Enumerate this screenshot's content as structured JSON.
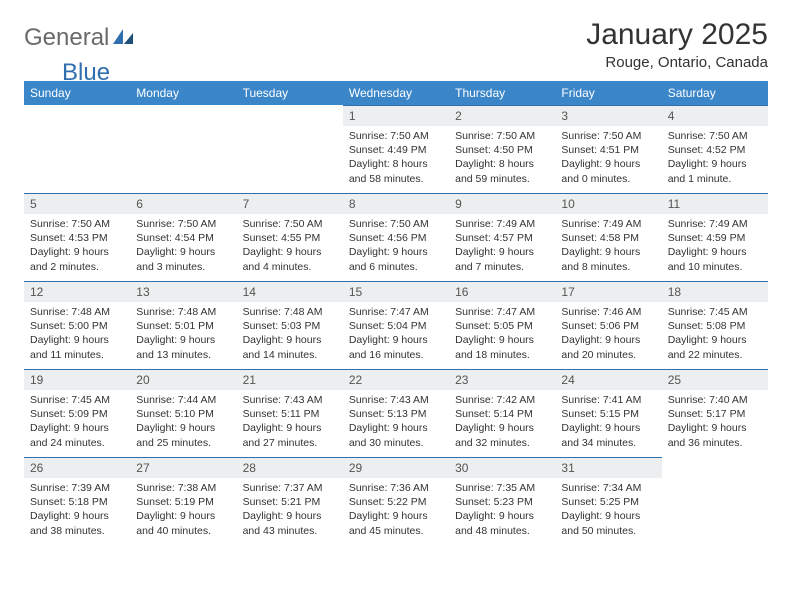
{
  "logo": {
    "word1": "General",
    "word2": "Blue"
  },
  "title": "January 2025",
  "location": "Rouge, Ontario, Canada",
  "headerColor": "#3a86c8",
  "dayHeaders": [
    "Sunday",
    "Monday",
    "Tuesday",
    "Wednesday",
    "Thursday",
    "Friday",
    "Saturday"
  ],
  "weeks": [
    [
      null,
      null,
      null,
      {
        "n": "1",
        "sr": "7:50 AM",
        "ss": "4:49 PM",
        "dl": "8 hours and 58 minutes."
      },
      {
        "n": "2",
        "sr": "7:50 AM",
        "ss": "4:50 PM",
        "dl": "8 hours and 59 minutes."
      },
      {
        "n": "3",
        "sr": "7:50 AM",
        "ss": "4:51 PM",
        "dl": "9 hours and 0 minutes."
      },
      {
        "n": "4",
        "sr": "7:50 AM",
        "ss": "4:52 PM",
        "dl": "9 hours and 1 minute."
      }
    ],
    [
      {
        "n": "5",
        "sr": "7:50 AM",
        "ss": "4:53 PM",
        "dl": "9 hours and 2 minutes."
      },
      {
        "n": "6",
        "sr": "7:50 AM",
        "ss": "4:54 PM",
        "dl": "9 hours and 3 minutes."
      },
      {
        "n": "7",
        "sr": "7:50 AM",
        "ss": "4:55 PM",
        "dl": "9 hours and 4 minutes."
      },
      {
        "n": "8",
        "sr": "7:50 AM",
        "ss": "4:56 PM",
        "dl": "9 hours and 6 minutes."
      },
      {
        "n": "9",
        "sr": "7:49 AM",
        "ss": "4:57 PM",
        "dl": "9 hours and 7 minutes."
      },
      {
        "n": "10",
        "sr": "7:49 AM",
        "ss": "4:58 PM",
        "dl": "9 hours and 8 minutes."
      },
      {
        "n": "11",
        "sr": "7:49 AM",
        "ss": "4:59 PM",
        "dl": "9 hours and 10 minutes."
      }
    ],
    [
      {
        "n": "12",
        "sr": "7:48 AM",
        "ss": "5:00 PM",
        "dl": "9 hours and 11 minutes."
      },
      {
        "n": "13",
        "sr": "7:48 AM",
        "ss": "5:01 PM",
        "dl": "9 hours and 13 minutes."
      },
      {
        "n": "14",
        "sr": "7:48 AM",
        "ss": "5:03 PM",
        "dl": "9 hours and 14 minutes."
      },
      {
        "n": "15",
        "sr": "7:47 AM",
        "ss": "5:04 PM",
        "dl": "9 hours and 16 minutes."
      },
      {
        "n": "16",
        "sr": "7:47 AM",
        "ss": "5:05 PM",
        "dl": "9 hours and 18 minutes."
      },
      {
        "n": "17",
        "sr": "7:46 AM",
        "ss": "5:06 PM",
        "dl": "9 hours and 20 minutes."
      },
      {
        "n": "18",
        "sr": "7:45 AM",
        "ss": "5:08 PM",
        "dl": "9 hours and 22 minutes."
      }
    ],
    [
      {
        "n": "19",
        "sr": "7:45 AM",
        "ss": "5:09 PM",
        "dl": "9 hours and 24 minutes."
      },
      {
        "n": "20",
        "sr": "7:44 AM",
        "ss": "5:10 PM",
        "dl": "9 hours and 25 minutes."
      },
      {
        "n": "21",
        "sr": "7:43 AM",
        "ss": "5:11 PM",
        "dl": "9 hours and 27 minutes."
      },
      {
        "n": "22",
        "sr": "7:43 AM",
        "ss": "5:13 PM",
        "dl": "9 hours and 30 minutes."
      },
      {
        "n": "23",
        "sr": "7:42 AM",
        "ss": "5:14 PM",
        "dl": "9 hours and 32 minutes."
      },
      {
        "n": "24",
        "sr": "7:41 AM",
        "ss": "5:15 PM",
        "dl": "9 hours and 34 minutes."
      },
      {
        "n": "25",
        "sr": "7:40 AM",
        "ss": "5:17 PM",
        "dl": "9 hours and 36 minutes."
      }
    ],
    [
      {
        "n": "26",
        "sr": "7:39 AM",
        "ss": "5:18 PM",
        "dl": "9 hours and 38 minutes."
      },
      {
        "n": "27",
        "sr": "7:38 AM",
        "ss": "5:19 PM",
        "dl": "9 hours and 40 minutes."
      },
      {
        "n": "28",
        "sr": "7:37 AM",
        "ss": "5:21 PM",
        "dl": "9 hours and 43 minutes."
      },
      {
        "n": "29",
        "sr": "7:36 AM",
        "ss": "5:22 PM",
        "dl": "9 hours and 45 minutes."
      },
      {
        "n": "30",
        "sr": "7:35 AM",
        "ss": "5:23 PM",
        "dl": "9 hours and 48 minutes."
      },
      {
        "n": "31",
        "sr": "7:34 AM",
        "ss": "5:25 PM",
        "dl": "9 hours and 50 minutes."
      },
      null
    ]
  ],
  "labels": {
    "sunrise": "Sunrise:",
    "sunset": "Sunset:",
    "daylight": "Daylight:"
  }
}
